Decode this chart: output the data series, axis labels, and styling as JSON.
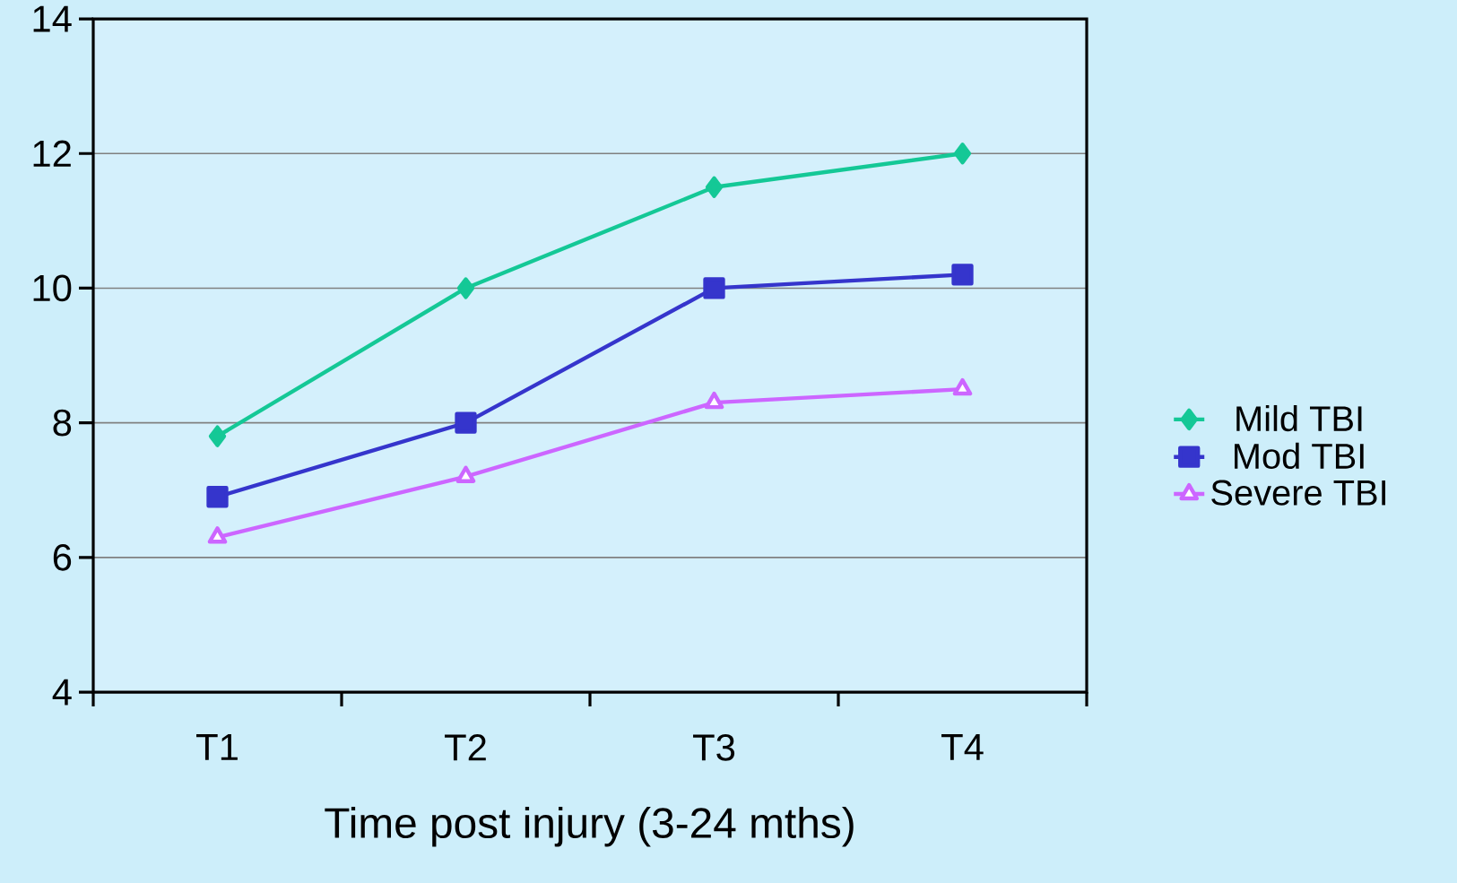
{
  "chart_data": {
    "type": "line",
    "xlabel": "Time post injury (3-24 mths)",
    "categories": [
      "T1",
      "T2",
      "T3",
      "T4"
    ],
    "series": [
      {
        "name": "Mild TBI",
        "color": "#14c896",
        "marker": "diamond",
        "values": [
          7.8,
          10,
          11.5,
          12
        ]
      },
      {
        "name": "Mod TBI",
        "color": "#3535cc",
        "marker": "square",
        "values": [
          6.9,
          8,
          10,
          10.2
        ]
      },
      {
        "name": "Severe TBI",
        "color": "#cc66ff",
        "marker": "triangle",
        "values": [
          6.3,
          7.2,
          8.3,
          8.5
        ]
      }
    ],
    "ylim": [
      4,
      14
    ],
    "yticks": [
      4,
      6,
      8,
      10,
      12,
      14
    ],
    "grid": "y",
    "legend": "right",
    "line_style": "solid"
  }
}
